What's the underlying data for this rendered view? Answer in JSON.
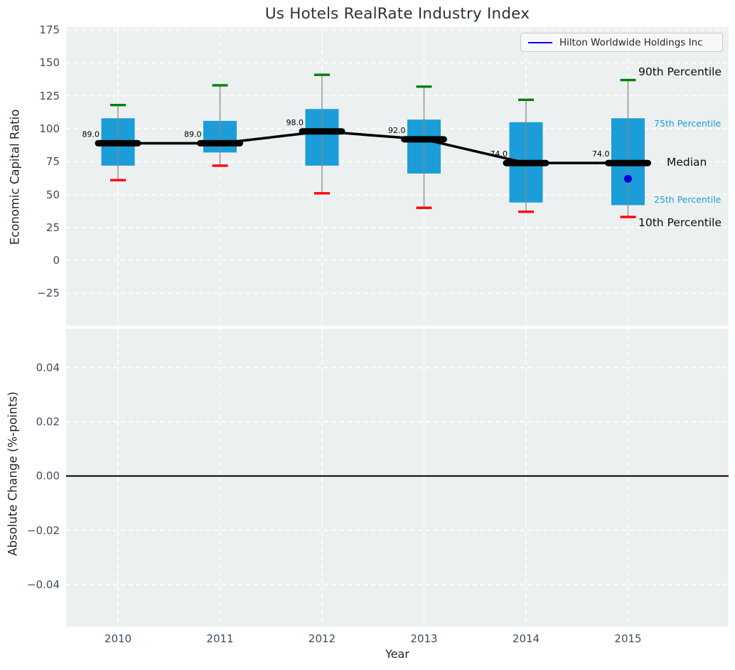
{
  "title": "Us Hotels RealRate Industry Index",
  "legend": {
    "label": "Hilton Worldwide Holdings Inc",
    "line_color": "#0000ff"
  },
  "axes": {
    "top": {
      "ylabel": "Economic Capital Ratio",
      "tick_labels": [
        "175",
        "150",
        "125",
        "100",
        "75",
        "50",
        "25",
        "0",
        "−25"
      ],
      "tick_values": [
        175,
        150,
        125,
        100,
        75,
        50,
        25,
        0,
        -25
      ],
      "ylim": [
        -49,
        178
      ]
    },
    "bottom": {
      "ylabel": "Absolute Change (%-points)",
      "tick_labels": [
        "0.04",
        "0.02",
        "0.00",
        "−0.02",
        "−0.04"
      ],
      "tick_values": [
        0.04,
        0.02,
        0,
        -0.02,
        -0.04
      ],
      "ylim": [
        -0.055,
        0.0545
      ],
      "zero_line_value": 0
    },
    "x": {
      "label": "Year",
      "tick_labels": [
        "2010",
        "2011",
        "2012",
        "2013",
        "2014",
        "2015"
      ]
    }
  },
  "annotations": {
    "p90": "90th Percentile",
    "p75": "75th Percentile",
    "median": "Median",
    "p25": "25th Percentile",
    "p10": "10th Percentile"
  },
  "colors": {
    "box": "#1b9dd9",
    "cap_top": "#008000",
    "cap_bottom": "#ff0000",
    "whisker": "#888888",
    "median_line": "#000000",
    "trend_line": "#000000",
    "company_point": "#0000cd",
    "legend_line": "#0000ff",
    "annotation_blue": "#1f9fd6",
    "plot_background": "#edf0f1",
    "gridline": "#ffffff",
    "zero_line": "#000000"
  },
  "chart_data": {
    "type": "boxplot-timeseries",
    "title": "Us Hotels RealRate Industry Index",
    "xlabel": "Year",
    "ylabel_top": "Economic Capital Ratio",
    "ylabel_bottom": "Absolute Change (%-points)",
    "categories": [
      2010,
      2011,
      2012,
      2013,
      2014,
      2015
    ],
    "series": [
      {
        "name": "90th Percentile",
        "values": [
          118,
          133,
          141,
          132,
          122,
          137
        ]
      },
      {
        "name": "75th Percentile",
        "values": [
          108,
          106,
          115,
          107,
          105,
          108
        ]
      },
      {
        "name": "Median",
        "values": [
          89,
          89,
          98,
          92,
          74,
          74
        ]
      },
      {
        "name": "25th Percentile",
        "values": [
          72,
          82,
          72,
          66,
          44,
          42
        ]
      },
      {
        "name": "10th Percentile",
        "values": [
          61,
          72,
          51,
          40,
          37,
          33
        ]
      }
    ],
    "median_labels": [
      "89.0",
      "89.0",
      "98.0",
      "92.0",
      "74.0",
      "74.0"
    ],
    "company": {
      "name": "Hilton Worldwide Holdings Inc",
      "points": [
        {
          "year": 2015,
          "value": 62
        }
      ]
    },
    "top_axis_range": [
      -49,
      178
    ],
    "bottom_axis_range": [
      -0.055,
      0.0545
    ],
    "bottom_panel_content": "zero reference line only",
    "grid": "white dashed on light panel",
    "legend_position": "upper right"
  }
}
